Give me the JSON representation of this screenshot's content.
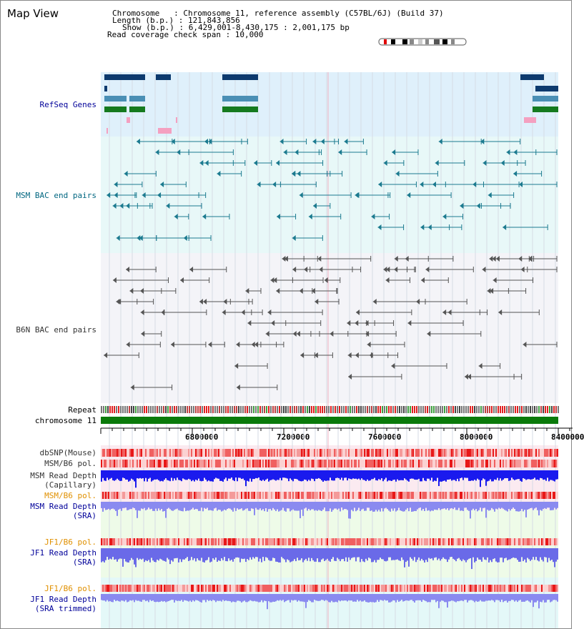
{
  "header": {
    "title": "Map View",
    "line1": "Chromosome   : Chromosome 11, reference assembly (C57BL/6J) (Build 37)",
    "line2": "Length (b.p.) : 121,843,856",
    "line3": "Show (b.p.) : 6,429,001-8,430,175 : 2,001,175 bp",
    "line4": "Read coverage check span : 10,000"
  },
  "tracks": {
    "refseq": "RefSeq Genes",
    "msm_bac": "MSM BAC end pairs",
    "b6n_bac": "B6N BAC end pairs",
    "repeat": "Repeat",
    "chromosome": "chromosome 11",
    "dbsnp": "dbSNP(Mouse)",
    "msm_b6_pol": "MSM/B6 pol.",
    "msm_read_depth_cap": "MSM Read Depth\n(Capillary)",
    "msm_b6_pol2": "MSM/B6 pol.",
    "msm_read_depth_sra": "MSM Read Depth\n(SRA)",
    "jf1_b6_pol": "JF1/B6 pol.",
    "jf1_read_depth_sra": "JF1 Read Depth\n(SRA)",
    "jf1_b6_pol2": "JF1/B6 pol.",
    "jf1_read_depth_trim": "JF1 Read Depth\n(SRA trimmed)"
  },
  "axis": {
    "ticks": [
      "6800000",
      "7200000",
      "7600000",
      "8000000",
      "8400000"
    ]
  },
  "colors": {
    "refseq_bg": "#dff0fb",
    "msm_bg": "#e8f8f8",
    "b6n_bg": "#f4f4f8",
    "gene_dark": "#0d3a6e",
    "gene_mid": "#4a8fb5",
    "gene_green": "#157a1f",
    "gene_pink": "#f4a0c0",
    "msm_pair": "#1b7a8f",
    "b6n_pair": "#555555",
    "chrom_green": "#0a7a0a",
    "depth_blue": "#1a1aee",
    "depth_lavender": "#8a8af0",
    "pol_red": "#e83838",
    "label_blue": "#000099",
    "label_orange": "#e09000",
    "label_teal": "#006680"
  }
}
